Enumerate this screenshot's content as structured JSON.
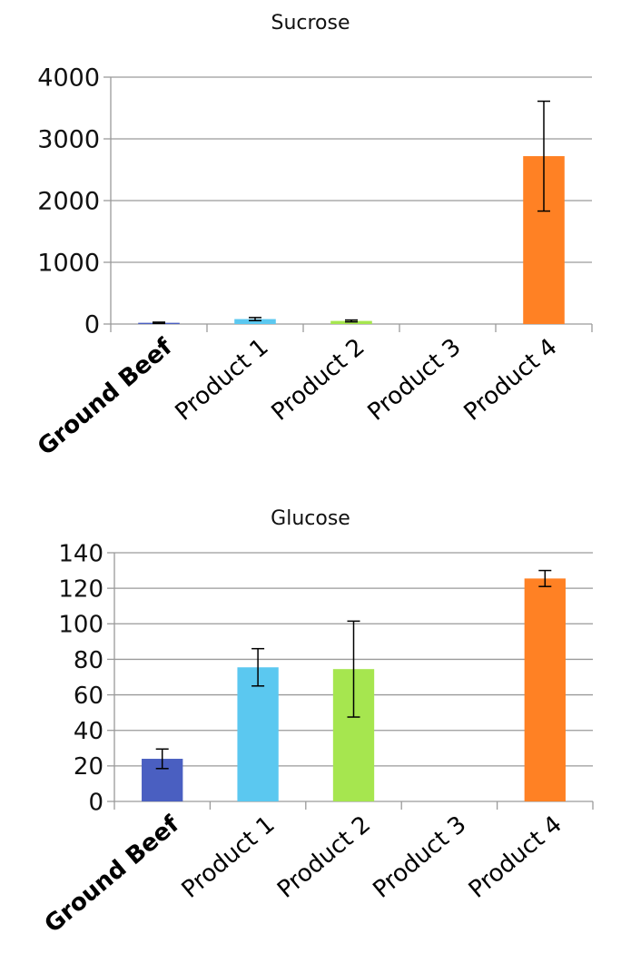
{
  "chart_data": [
    {
      "type": "bar",
      "title": "Sucrose",
      "xlabel": "",
      "ylabel": "",
      "categories": [
        "Ground Beef",
        "Product 1",
        "Product 2",
        "Product 3",
        "Product 4"
      ],
      "values": [
        20,
        80,
        50,
        0,
        2720
      ],
      "errors": [
        10,
        25,
        15,
        0,
        890
      ],
      "ylim": [
        0,
        4000
      ],
      "yticks": [
        "0",
        "1000",
        "2000",
        "3000",
        "4000"
      ],
      "grid": true,
      "colors": [
        "#4A5FC1",
        "#5BC8F0",
        "#A6E64F",
        "#FF9944",
        "#FF8124"
      ]
    },
    {
      "type": "bar",
      "title": "Glucose",
      "xlabel": "",
      "ylabel": "",
      "categories": [
        "Ground Beef",
        "Product 1",
        "Product 2",
        "Product 3",
        "Product 4"
      ],
      "values": [
        24,
        75.5,
        74.5,
        0,
        125.5
      ],
      "errors": [
        5.5,
        10.5,
        27,
        0,
        4.5
      ],
      "ylim": [
        0,
        140
      ],
      "yticks": [
        "0",
        "20",
        "40",
        "60",
        "80",
        "100",
        "120",
        "140"
      ],
      "grid": true,
      "colors": [
        "#4A5FC1",
        "#5BC8F0",
        "#A6E64F",
        "#FF9944",
        "#FF8124"
      ]
    }
  ]
}
